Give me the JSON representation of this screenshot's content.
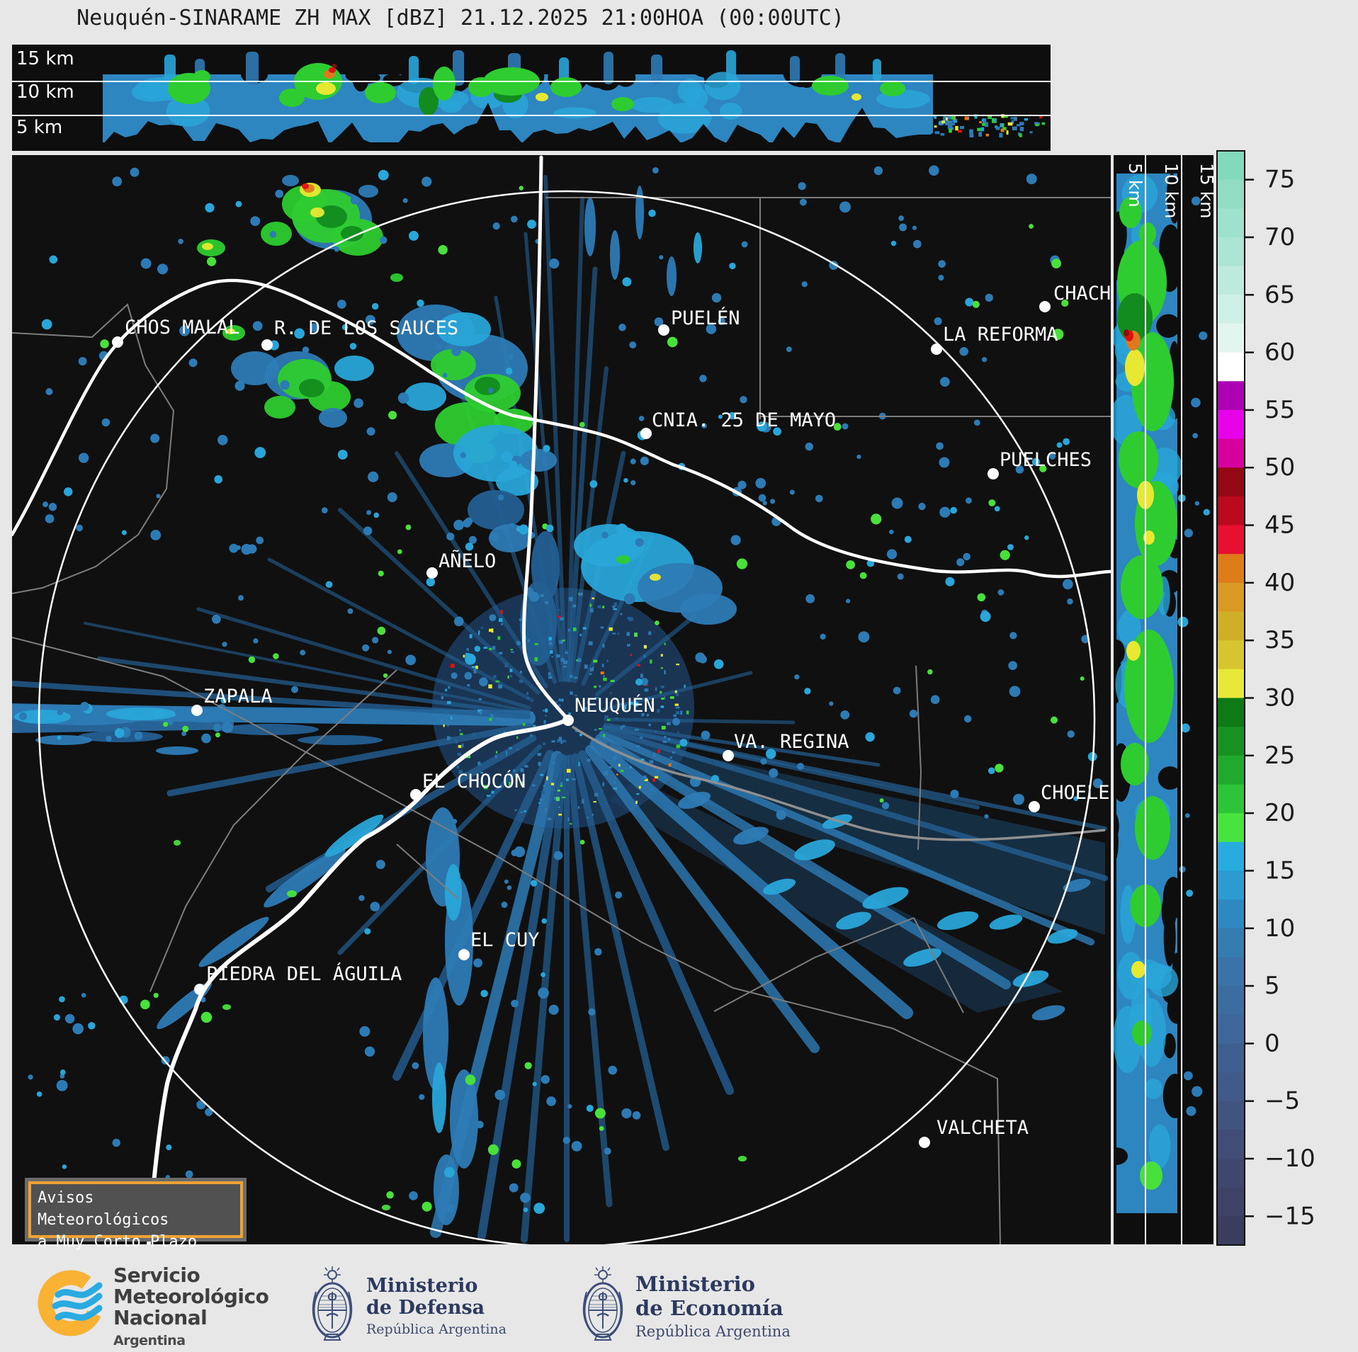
{
  "title": "Neuquén-SINARAME ZH MAX [dBZ] 21.12.2025 21:00HOA (00:00UTC)",
  "top_panel": {
    "description": "E-W vertical cross-section",
    "altitude_labels": [
      "15 km",
      "10 km",
      "5 km"
    ]
  },
  "right_panel": {
    "description": "N-S vertical cross-section",
    "altitude_labels": [
      "5 km",
      "10 km",
      "15 km"
    ]
  },
  "colorbar": {
    "unit": "dBZ",
    "tick_labels": [
      "75",
      "70",
      "65",
      "60",
      "55",
      "50",
      "45",
      "40",
      "35",
      "30",
      "25",
      "20",
      "15",
      "10",
      "5",
      "0",
      "−5",
      "−10",
      "−15"
    ],
    "tick_values": [
      75,
      70,
      65,
      60,
      55,
      50,
      45,
      40,
      35,
      30,
      25,
      20,
      15,
      10,
      5,
      0,
      -5,
      -10,
      -15
    ],
    "v_top": 77.5,
    "v_step": 2.5,
    "palette": [
      "#83d9bc",
      "#90ddc4",
      "#9ee1cc",
      "#ade5d4",
      "#bdeadd",
      "#cff0e6",
      "#e2f5ee",
      "#ffffff",
      "#ad00b5",
      "#e800e8",
      "#d6009e",
      "#930813",
      "#bb0a1d",
      "#e81031",
      "#dd7d1a",
      "#d89a22",
      "#cfae28",
      "#d6c52e",
      "#e7e83a",
      "#0d7a15",
      "#169122",
      "#20a92c",
      "#2dc437",
      "#48e33f",
      "#28ace0",
      "#2b9bd2",
      "#2e89c2",
      "#357cb1",
      "#3a73a8",
      "#3c6da1",
      "#3d669a",
      "#3f5f90",
      "#405988",
      "#41537f",
      "#414d77",
      "#40476e",
      "#3e4266",
      "#3b3d5f"
    ]
  },
  "map": {
    "cities": [
      {
        "name": "CHOS MALAL",
        "dot": [
          166,
          483
        ],
        "label": [
          176,
          471
        ]
      },
      {
        "name": "R. DE LOS SAUCES",
        "dot": [
          377,
          487
        ],
        "label": [
          387,
          472
        ]
      },
      {
        "name": "PUELÉN",
        "dot": [
          937,
          466
        ],
        "label": [
          947,
          458
        ]
      },
      {
        "name": "CHACH",
        "dot": [
          1475,
          433
        ],
        "label": [
          1487,
          423
        ]
      },
      {
        "name": "LA REFORMA",
        "dot": [
          1322,
          493
        ],
        "label": [
          1331,
          481
        ]
      },
      {
        "name": "CNIA. 25 DE MAYO",
        "dot": [
          912,
          612
        ],
        "label": [
          920,
          602
        ]
      },
      {
        "name": "PUELCHES",
        "dot": [
          1402,
          669
        ],
        "label": [
          1411,
          658
        ]
      },
      {
        "name": "AÑELO",
        "dot": [
          610,
          809
        ],
        "label": [
          619,
          801
        ]
      },
      {
        "name": "ZAPALA",
        "dot": [
          278,
          1003
        ],
        "label": [
          287,
          992
        ]
      },
      {
        "name": "NEUQUÉN",
        "dot": [
          802,
          1017
        ],
        "label": [
          811,
          1005
        ]
      },
      {
        "name": "VA. REGINA",
        "dot": [
          1028,
          1067
        ],
        "label": [
          1036,
          1056
        ]
      },
      {
        "name": "EL CHOCÓN",
        "dot": [
          587,
          1122
        ],
        "label": [
          596,
          1112
        ]
      },
      {
        "name": "CHOELE",
        "dot": [
          1460,
          1139
        ],
        "label": [
          1469,
          1128
        ]
      },
      {
        "name": "EL CUY",
        "dot": [
          655,
          1348
        ],
        "label": [
          664,
          1336
        ]
      },
      {
        "name": "PIEDRA DEL ÁGUILA",
        "dot": [
          282,
          1397
        ],
        "label": [
          291,
          1384
        ]
      },
      {
        "name": "VALCHETA",
        "dot": [
          1305,
          1613
        ],
        "label": [
          1322,
          1601
        ]
      }
    ]
  },
  "warning_box": {
    "line1": "Avisos Meteorológicos",
    "line2": "a Muy Corto Plazo",
    "border_color": "#f0a232"
  },
  "footer": {
    "smn": {
      "lines": [
        "Servicio",
        "Meteorológico",
        "Nacional"
      ],
      "country": "Argentina",
      "brand_orange": "#f9b233",
      "brand_blue": "#29abe2"
    },
    "defensa": {
      "lines": [
        "Ministerio",
        "de Defensa"
      ],
      "subtitle": "República Argentina"
    },
    "economia": {
      "lines": [
        "Ministerio",
        "de Economía"
      ],
      "subtitle": "República Argentina"
    }
  }
}
